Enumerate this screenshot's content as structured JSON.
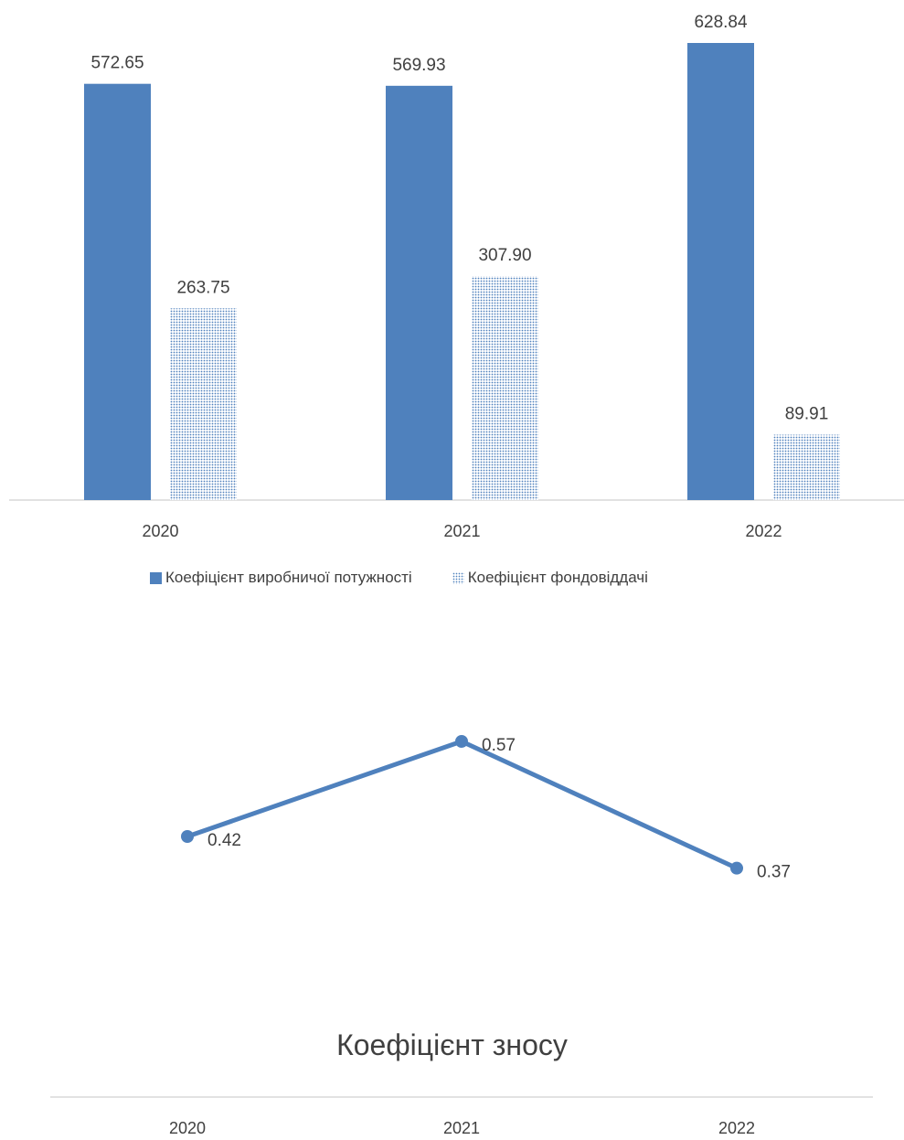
{
  "chart_data": [
    {
      "type": "bar",
      "categories": [
        "2020",
        "2021",
        "2022"
      ],
      "series": [
        {
          "name": "Коефіцієнт виробничої потужності",
          "values": [
            572.65,
            569.93,
            628.84
          ],
          "labels": [
            "572.65",
            "569.93",
            "628.84"
          ],
          "color": "#4f81bd",
          "pattern": "solid"
        },
        {
          "name": "Коефіцієнт фондовіддачі",
          "values": [
            263.75,
            307.9,
            89.91
          ],
          "labels": [
            "263.75",
            "307.90",
            "89.91"
          ],
          "color": "#4f81bd",
          "pattern": "dotted"
        }
      ],
      "ylim": [
        0,
        700
      ],
      "grid": false,
      "legend": "bottom"
    },
    {
      "type": "line",
      "title": "Коефіцієнт зносу",
      "categories": [
        "2020",
        "2021",
        "2022"
      ],
      "series": [
        {
          "values": [
            0.42,
            0.57,
            0.37
          ],
          "labels": [
            "0.42",
            "0.57",
            "0.37"
          ],
          "color": "#4f81bd"
        }
      ],
      "ylim": [
        0,
        0.9
      ],
      "grid": false,
      "legend": "none"
    }
  ]
}
